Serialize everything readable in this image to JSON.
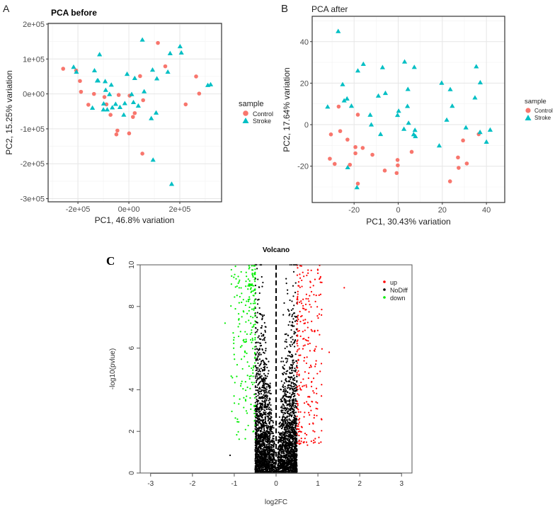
{
  "chart_data": [
    {
      "panel": "A",
      "type": "scatter",
      "title": "PCA before",
      "xlabel": "PC1, 46.8% variation",
      "ylabel": "PC2, 15.25% variation",
      "xlim": [
        -317000,
        364000
      ],
      "ylim": [
        -309000,
        202000
      ],
      "xticks": [
        -200000,
        0,
        200000
      ],
      "xtick_labels": [
        "-2e+05",
        "0e+00",
        "2e+05"
      ],
      "yticks": [
        200000,
        100000,
        0,
        -100000,
        -200000,
        -300000
      ],
      "ytick_labels": [
        "2e+05",
        "1e+05",
        "0e+00",
        "-1e+05",
        "-2e+05",
        "-3e+05"
      ],
      "grid": true,
      "legend": {
        "title": "sample",
        "placement": "right"
      },
      "series": [
        {
          "name": "Control",
          "color": "#F8766D",
          "marker": "circle",
          "points": [
            [
              -258000,
              72000
            ],
            [
              -207000,
              67000
            ],
            [
              -192000,
              37000
            ],
            [
              -188000,
              6000
            ],
            [
              -137000,
              0
            ],
            [
              -159000,
              -31000
            ],
            [
              -96000,
              -9000
            ],
            [
              -88000,
              -30000
            ],
            [
              -72000,
              -60000
            ],
            [
              -45000,
              -105000
            ],
            [
              -49000,
              -116000
            ],
            [
              -40000,
              -3000
            ],
            [
              3000,
              -5000
            ],
            [
              1000,
              -113000
            ],
            [
              16000,
              -66000
            ],
            [
              23000,
              -55000
            ],
            [
              44000,
              51000
            ],
            [
              56000,
              -18000
            ],
            [
              53000,
              -171000
            ],
            [
              114000,
              146000
            ],
            [
              143000,
              79000
            ],
            [
              223000,
              -30000
            ],
            [
              264000,
              50000
            ],
            [
              276000,
              1000
            ]
          ]
        },
        {
          "name": "Stroke",
          "color": "#00BFC4",
          "marker": "triangle",
          "points": [
            [
              -217000,
              77000
            ],
            [
              -206000,
              63000
            ],
            [
              -115000,
              113000
            ],
            [
              -135000,
              67000
            ],
            [
              -124000,
              38000
            ],
            [
              -121000,
              38000
            ],
            [
              -93000,
              36000
            ],
            [
              -91000,
              11000
            ],
            [
              -69000,
              26000
            ],
            [
              -76000,
              -1000
            ],
            [
              -143000,
              -40000
            ],
            [
              -99000,
              -28000
            ],
            [
              -100000,
              -45000
            ],
            [
              -85000,
              -45000
            ],
            [
              -52000,
              -29000
            ],
            [
              -65000,
              -39000
            ],
            [
              -35000,
              -38000
            ],
            [
              -16000,
              -27000
            ],
            [
              -20000,
              -60000
            ],
            [
              -7000,
              57000
            ],
            [
              11000,
              -1000
            ],
            [
              23000,
              45000
            ],
            [
              18000,
              -24000
            ],
            [
              37000,
              -34000
            ],
            [
              60000,
              7000
            ],
            [
              53000,
              155000
            ],
            [
              93000,
              69000
            ],
            [
              110000,
              44000
            ],
            [
              153000,
              63000
            ],
            [
              162000,
              116000
            ],
            [
              107000,
              -54000
            ],
            [
              88000,
              -70000
            ],
            [
              95000,
              -189000
            ],
            [
              168000,
              -258000
            ],
            [
              201000,
              136000
            ],
            [
              206000,
              118000
            ],
            [
              310000,
              25000
            ],
            [
              321000,
              27000
            ]
          ]
        }
      ]
    },
    {
      "panel": "B",
      "type": "scatter",
      "title": "PCA after",
      "xlabel": "PC1, 30.43% variation",
      "ylabel": "PC2, 17.64% variation",
      "xlim": [
        -39,
        48.3
      ],
      "ylim": [
        -37.5,
        52.2
      ],
      "xticks": [
        -20,
        0,
        20,
        40
      ],
      "xtick_labels": [
        "-20",
        "0",
        "20",
        "40"
      ],
      "yticks": [
        40,
        20,
        0,
        -20
      ],
      "ytick_labels": [
        "40",
        "20",
        "0",
        "-20"
      ],
      "grid": true,
      "legend": {
        "title": "sample",
        "placement": "right"
      },
      "series": [
        {
          "name": "Control",
          "color": "#F8766D",
          "marker": "circle",
          "points": [
            [
              -27,
              8.7
            ],
            [
              -18.3,
              4.8
            ],
            [
              -30.5,
              -4.7
            ],
            [
              -26.3,
              -3.1
            ],
            [
              -23,
              -7.2
            ],
            [
              -19.4,
              -10.8
            ],
            [
              -19.4,
              -13.8
            ],
            [
              -16.1,
              -11.2
            ],
            [
              -11.7,
              -14.5
            ],
            [
              -31,
              -16.4
            ],
            [
              -28.8,
              -18.9
            ],
            [
              -21.9,
              -19.3
            ],
            [
              -6.1,
              -22.1
            ],
            [
              -0.3,
              -17
            ],
            [
              -0.2,
              -19.6
            ],
            [
              -0.7,
              -23.3
            ],
            [
              -18.3,
              -28.4
            ],
            [
              6.1,
              -13.1
            ],
            [
              23.5,
              -27.3
            ],
            [
              27.1,
              -15.8
            ],
            [
              27.4,
              -20.8
            ],
            [
              31.1,
              -18.7
            ],
            [
              29.4,
              -7.6
            ],
            [
              36.5,
              -4.6
            ]
          ]
        },
        {
          "name": "Stroke",
          "color": "#00BFC4",
          "marker": "triangle",
          "points": [
            [
              -27.2,
              45
            ],
            [
              -18.3,
              26
            ],
            [
              -15.8,
              29.2
            ],
            [
              -25.2,
              19.4
            ],
            [
              -24.5,
              11.6
            ],
            [
              -23.2,
              12.5
            ],
            [
              -21.2,
              9
            ],
            [
              -32,
              8.6
            ],
            [
              -12.7,
              4.7
            ],
            [
              -12.2,
              0
            ],
            [
              -8,
              -4.6
            ],
            [
              -9,
              13.9
            ],
            [
              -5.8,
              15.2
            ],
            [
              -7.1,
              27.6
            ],
            [
              2.9,
              30.3
            ],
            [
              7.3,
              27.7
            ],
            [
              4.4,
              17.1
            ],
            [
              4.2,
              8.9
            ],
            [
              0.2,
              6.6
            ],
            [
              -0.3,
              4.6
            ],
            [
              4.7,
              0.8
            ],
            [
              2.6,
              -2.1
            ],
            [
              7.6,
              -2.6
            ],
            [
              7,
              -4.7
            ],
            [
              7.8,
              -5.6
            ],
            [
              -22.9,
              -20.6
            ],
            [
              -18.7,
              -30.2
            ],
            [
              19.7,
              20.1
            ],
            [
              23.6,
              17
            ],
            [
              24.5,
              9
            ],
            [
              22,
              2.3
            ],
            [
              18.6,
              -10.1
            ],
            [
              30.7,
              -1.4
            ],
            [
              35.4,
              28
            ],
            [
              37.2,
              20.3
            ],
            [
              34.8,
              13
            ],
            [
              37.1,
              -3.6
            ],
            [
              41.7,
              -2.5
            ],
            [
              40,
              -8.3
            ]
          ]
        }
      ]
    },
    {
      "panel": "C",
      "type": "scatter",
      "title": "Volcano",
      "xlabel": "log2FC",
      "ylabel": "-log10(pvlue)",
      "xlim": [
        -3.25,
        3.25
      ],
      "ylim": [
        0,
        10
      ],
      "xticks": [
        -3,
        -2,
        -1,
        0,
        1,
        2,
        3
      ],
      "xtick_labels": [
        "-3",
        "-2",
        "-1",
        "0",
        "1",
        "2",
        "3"
      ],
      "yticks": [
        0,
        2,
        4,
        6,
        8,
        10
      ],
      "ytick_labels": [
        "0",
        "2",
        "4",
        "6",
        "8",
        "10"
      ],
      "grid": false,
      "vline": 0,
      "fc_threshold": 0.5,
      "legend": {
        "placement": "top-right"
      },
      "series": [
        {
          "name": "up",
          "color": "#FF0000",
          "x_range": [
            0.5,
            1.1
          ],
          "outliers": [
            [
              1.63,
              8.9
            ],
            [
              1.27,
              5.8
            ]
          ]
        },
        {
          "name": "NoDiff",
          "color": "#000000",
          "x_range": [
            -0.5,
            0.5
          ],
          "outliers": [
            [
              -1.1,
              0.85
            ]
          ]
        },
        {
          "name": "down",
          "color": "#00EE00",
          "x_range": [
            -1.1,
            -0.5
          ],
          "outliers": [
            [
              -1.22,
              7.2
            ]
          ]
        }
      ]
    }
  ],
  "panel_labels": [
    "A",
    "B",
    "C"
  ]
}
